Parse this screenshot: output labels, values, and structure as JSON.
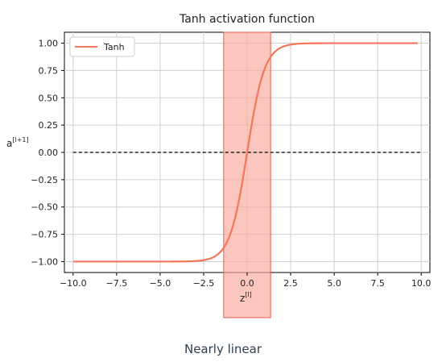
{
  "chart_data": {
    "type": "line",
    "title": "Tanh activation function",
    "xlabel": "z",
    "xlabel_sup": "[l]",
    "ylabel": "a",
    "ylabel_sup": "[l+1]",
    "xlim": [
      -10.5,
      10.5
    ],
    "ylim": [
      -1.1,
      1.1
    ],
    "xticks": [
      -10.0,
      -7.5,
      -5.0,
      -2.5,
      0.0,
      2.5,
      5.0,
      7.5,
      10.0
    ],
    "xtick_labels": [
      "−10.0",
      "−7.5",
      "−5.0",
      "−2.5",
      "0.0",
      "2.5",
      "5.0",
      "7.5",
      "10.0"
    ],
    "yticks": [
      1.0,
      0.75,
      0.5,
      0.25,
      0.0,
      -0.25,
      -0.5,
      -0.75,
      -1.0
    ],
    "ytick_labels": [
      "1.00",
      "0.75",
      "0.50",
      "0.25",
      "0.00",
      "−0.25",
      "−0.50",
      "−0.75",
      "−1.00"
    ],
    "grid": true,
    "legend_position": "top-left",
    "series": [
      {
        "name": "Tanh",
        "function": "tanh",
        "x_range": [
          -10,
          9.8
        ],
        "color": "#f4755a"
      }
    ],
    "reference_line": {
      "y": 0,
      "x_range": [
        -10,
        10
      ],
      "style": "dashed",
      "color": "#000000"
    },
    "highlight_region": {
      "x_range": [
        -1.35,
        1.35
      ],
      "color": "#f7a89a",
      "edge_color": "#e8604a"
    },
    "annotation": "Nearly linear"
  }
}
